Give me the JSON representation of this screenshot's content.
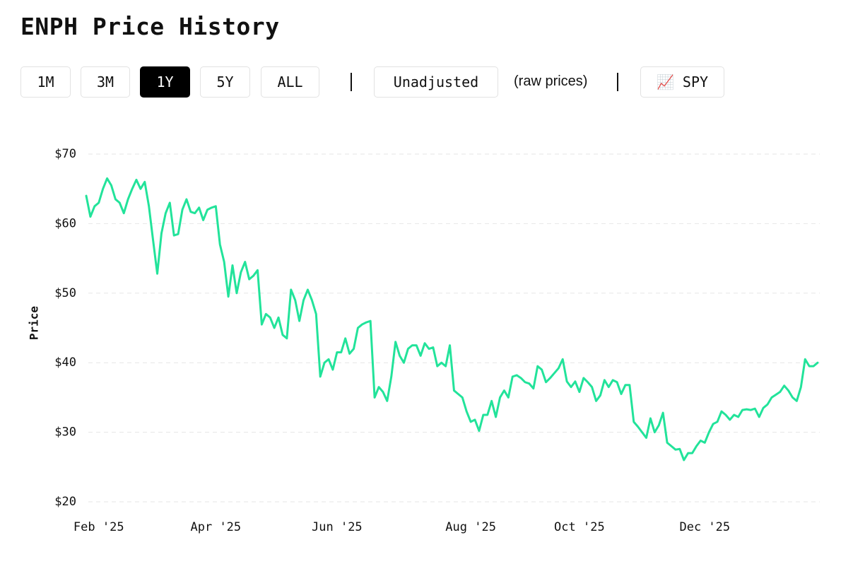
{
  "header": {
    "title": "ENPH Price History"
  },
  "controls": {
    "ranges": [
      "1M",
      "3M",
      "1Y",
      "5Y",
      "ALL"
    ],
    "active_range": "1Y",
    "adjustment": "Unadjusted",
    "adjustment_note": "(raw prices)",
    "compare": "📈 SPY"
  },
  "chart_data": {
    "type": "line",
    "ylabel": "Price",
    "color": "#22e39a",
    "grid": true,
    "ylim": [
      20,
      70
    ],
    "yticks": [
      {
        "value": 20,
        "label": "$20"
      },
      {
        "value": 30,
        "label": "$30"
      },
      {
        "value": 40,
        "label": "$40"
      },
      {
        "value": 50,
        "label": "$50"
      },
      {
        "value": 60,
        "label": "$60"
      },
      {
        "value": 70,
        "label": "$70"
      }
    ],
    "categories": [
      null,
      null,
      null,
      "Feb '25",
      null,
      null,
      null,
      null,
      null,
      null,
      null,
      null,
      null,
      null,
      null,
      null,
      null,
      null,
      null,
      null,
      null,
      null,
      null,
      null,
      null,
      null,
      null,
      null,
      null,
      null,
      null,
      "Apr '25",
      null,
      null,
      null,
      null,
      null,
      null,
      null,
      null,
      null,
      null,
      null,
      null,
      null,
      null,
      null,
      null,
      null,
      null,
      null,
      null,
      null,
      null,
      null,
      null,
      null,
      null,
      null,
      null,
      "Jun '25",
      null,
      null,
      null,
      null,
      null,
      null,
      null,
      null,
      null,
      null,
      null,
      null,
      null,
      null,
      null,
      null,
      null,
      null,
      null,
      null,
      null,
      null,
      null,
      null,
      null,
      null,
      null,
      null,
      null,
      null,
      null,
      "Aug '25",
      null,
      null,
      null,
      null,
      null,
      null,
      null,
      null,
      null,
      null,
      null,
      null,
      null,
      null,
      null,
      null,
      null,
      null,
      null,
      null,
      null,
      null,
      null,
      null,
      null,
      "Oct '25",
      null,
      null,
      null,
      null,
      null,
      null,
      null,
      null,
      null,
      null,
      null,
      null,
      null,
      null,
      null,
      null,
      null,
      null,
      null,
      null,
      null,
      null,
      null,
      null,
      null,
      null,
      null,
      null,
      null,
      "Dec '25",
      null,
      null,
      null,
      null,
      null,
      null,
      null,
      null,
      null,
      null,
      null,
      null,
      null,
      null,
      null,
      null,
      null,
      null,
      null,
      null,
      null,
      null,
      null,
      null,
      null,
      null,
      null
    ],
    "values": [
      64,
      61,
      62.5,
      63,
      65,
      66.5,
      65.5,
      63.5,
      63,
      61.5,
      63.5,
      65,
      66.3,
      65,
      66,
      62.5,
      57.6,
      52.8,
      58.6,
      61.5,
      63,
      58.3,
      58.5,
      62,
      63.5,
      61.7,
      61.5,
      62.3,
      60.5,
      62,
      62.3,
      62.5,
      57,
      54.5,
      49.5,
      54,
      50,
      53,
      54.5,
      52,
      52.5,
      53.3,
      45.5,
      47,
      46.5,
      45,
      46.5,
      44,
      43.5,
      50.5,
      49,
      46,
      49,
      50.5,
      49,
      47,
      38,
      40,
      40.5,
      39,
      41.5,
      41.5,
      43.5,
      41.3,
      42,
      45,
      45.5,
      45.8,
      46,
      35,
      36.5,
      35.8,
      34.5,
      38,
      43,
      41,
      40,
      42,
      42.5,
      42.5,
      41,
      42.8,
      42,
      42.2,
      39.5,
      40,
      39.5,
      42.5,
      36,
      35.5,
      35,
      33,
      31.5,
      31.8,
      30.2,
      32.5,
      32.5,
      34.5,
      32.2,
      35,
      36,
      35,
      38,
      38.2,
      37.8,
      37.2,
      37,
      36.3,
      39.5,
      39,
      37.2,
      37.8,
      38.5,
      39.2,
      40.5,
      37.3,
      36.5,
      37.3,
      35.8,
      37.8,
      37.2,
      36.5,
      34.5,
      35.3,
      37.5,
      36.5,
      37.5,
      37.2,
      35.5,
      36.8,
      36.8,
      31.5,
      30.8,
      30,
      29.2,
      32,
      30,
      31,
      32.8,
      28.5,
      28,
      27.5,
      27.6,
      26,
      27,
      27,
      28,
      28.8,
      28.5,
      30,
      31.2,
      31.5,
      33,
      32.5,
      31.8,
      32.5,
      32.2,
      33.2,
      33.3,
      33.2,
      33.4,
      32.2,
      33.5,
      34,
      35,
      35.4,
      35.8,
      36.7,
      36,
      35,
      34.5,
      36.5,
      40.5,
      39.5,
      39.5,
      40
    ]
  }
}
